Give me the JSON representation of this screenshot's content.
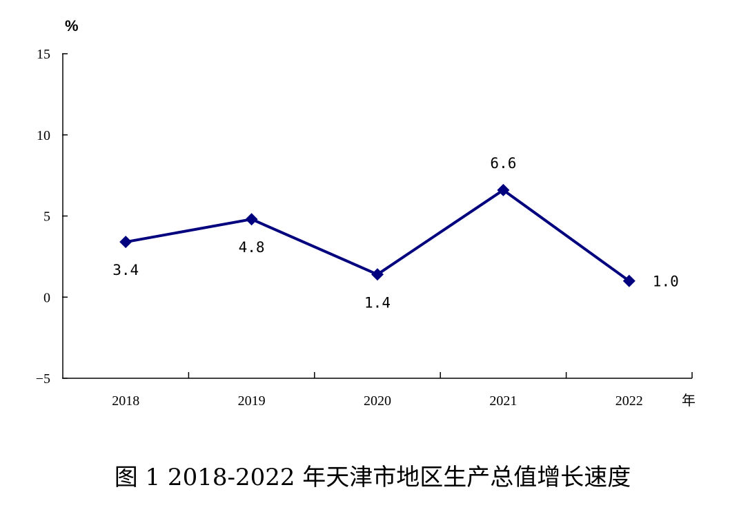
{
  "chart_data": {
    "type": "line",
    "title": "",
    "ylabel": "%",
    "xlabel": "年",
    "ylim": [
      -5,
      15
    ],
    "yticks": [
      -5,
      0,
      5,
      10,
      15
    ],
    "ytick_labels": [
      "−5",
      "0",
      "5",
      "10",
      "15"
    ],
    "categories": [
      "2018",
      "2019",
      "2020",
      "2021",
      "2022"
    ],
    "series": [
      {
        "values": [
          3.4,
          4.8,
          1.4,
          6.6,
          1.0
        ],
        "color": "#00007f",
        "marker": "diamond"
      }
    ],
    "data_labels": [
      "3.4",
      "4.8",
      "1.4",
      "6.6",
      "1.0"
    ],
    "grid": false,
    "legend": "none"
  },
  "caption": "图 1 2018-2022 年天津市地区生产总值增长速度"
}
